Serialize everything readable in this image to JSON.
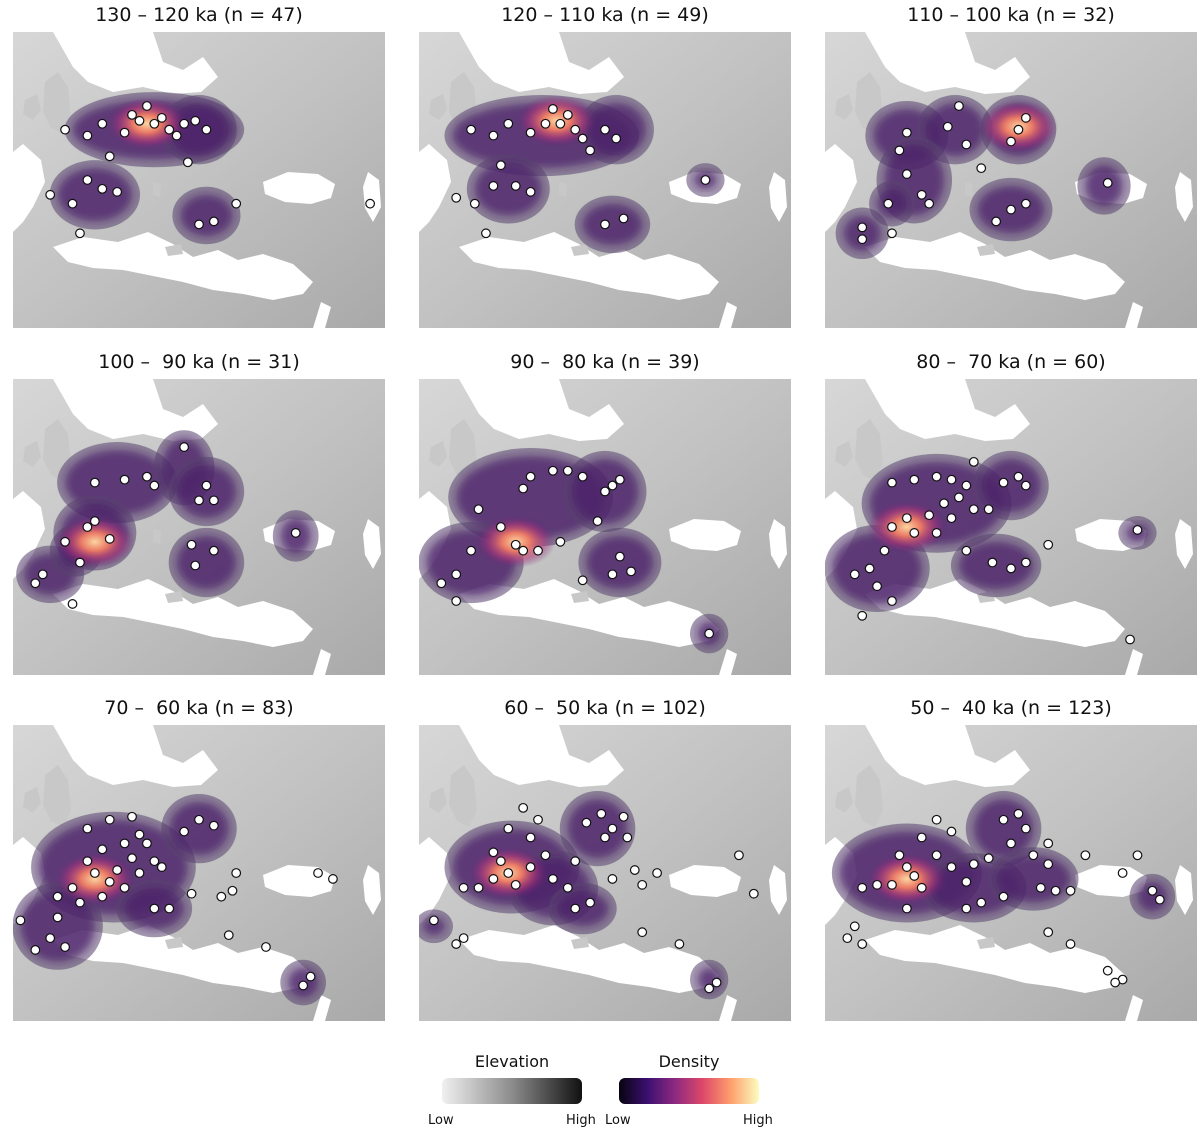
{
  "panels": [
    {
      "title": "130 – 120 ka (n = 47)",
      "blobs": [
        [
          0.38,
          0.33,
          0.22,
          0.1
        ],
        [
          0.22,
          0.55,
          0.1,
          0.09
        ],
        [
          0.52,
          0.62,
          0.07,
          0.07
        ],
        [
          0.5,
          0.33,
          0.08,
          0.09
        ]
      ],
      "hot": [
        0.36,
        0.31
      ],
      "sites": [
        [
          0.14,
          0.33
        ],
        [
          0.2,
          0.35
        ],
        [
          0.24,
          0.31
        ],
        [
          0.3,
          0.34
        ],
        [
          0.34,
          0.3
        ],
        [
          0.38,
          0.31
        ],
        [
          0.4,
          0.29
        ],
        [
          0.42,
          0.33
        ],
        [
          0.44,
          0.35
        ],
        [
          0.46,
          0.31
        ],
        [
          0.36,
          0.25
        ],
        [
          0.32,
          0.28
        ],
        [
          0.26,
          0.42
        ],
        [
          0.2,
          0.5
        ],
        [
          0.24,
          0.53
        ],
        [
          0.28,
          0.54
        ],
        [
          0.16,
          0.58
        ],
        [
          0.1,
          0.55
        ],
        [
          0.49,
          0.3
        ],
        [
          0.52,
          0.33
        ],
        [
          0.47,
          0.44
        ],
        [
          0.54,
          0.64
        ],
        [
          0.5,
          0.65
        ],
        [
          0.6,
          0.58
        ],
        [
          0.18,
          0.68
        ],
        [
          0.96,
          0.58
        ]
      ]
    },
    {
      "title": "120 – 110 ka (n = 49)",
      "blobs": [
        [
          0.33,
          0.35,
          0.24,
          0.11
        ],
        [
          0.24,
          0.53,
          0.09,
          0.09
        ],
        [
          0.52,
          0.65,
          0.08,
          0.07
        ],
        [
          0.53,
          0.33,
          0.08,
          0.09
        ],
        [
          0.77,
          0.5,
          0.03,
          0.03
        ]
      ],
      "hot": [
        0.37,
        0.3
      ],
      "sites": [
        [
          0.14,
          0.33
        ],
        [
          0.2,
          0.35
        ],
        [
          0.24,
          0.31
        ],
        [
          0.3,
          0.34
        ],
        [
          0.34,
          0.31
        ],
        [
          0.38,
          0.31
        ],
        [
          0.4,
          0.28
        ],
        [
          0.42,
          0.33
        ],
        [
          0.44,
          0.36
        ],
        [
          0.36,
          0.26
        ],
        [
          0.22,
          0.45
        ],
        [
          0.2,
          0.52
        ],
        [
          0.26,
          0.52
        ],
        [
          0.3,
          0.54
        ],
        [
          0.1,
          0.56
        ],
        [
          0.15,
          0.58
        ],
        [
          0.5,
          0.33
        ],
        [
          0.53,
          0.36
        ],
        [
          0.46,
          0.4
        ],
        [
          0.5,
          0.65
        ],
        [
          0.55,
          0.63
        ],
        [
          0.77,
          0.5
        ],
        [
          0.18,
          0.68
        ]
      ]
    },
    {
      "title": "110 – 100 ka (n = 32)",
      "blobs": [
        [
          0.22,
          0.35,
          0.09,
          0.09
        ],
        [
          0.35,
          0.33,
          0.08,
          0.09
        ],
        [
          0.52,
          0.33,
          0.08,
          0.09
        ],
        [
          0.24,
          0.5,
          0.08,
          0.12
        ],
        [
          0.5,
          0.6,
          0.09,
          0.08
        ],
        [
          0.75,
          0.52,
          0.05,
          0.07
        ],
        [
          0.1,
          0.68,
          0.05,
          0.06
        ],
        [
          0.18,
          0.58,
          0.04,
          0.05
        ]
      ],
      "hot": [
        0.52,
        0.32
      ],
      "sites": [
        [
          0.22,
          0.34
        ],
        [
          0.2,
          0.4
        ],
        [
          0.33,
          0.32
        ],
        [
          0.38,
          0.38
        ],
        [
          0.36,
          0.25
        ],
        [
          0.52,
          0.33
        ],
        [
          0.54,
          0.29
        ],
        [
          0.5,
          0.37
        ],
        [
          0.42,
          0.46
        ],
        [
          0.22,
          0.48
        ],
        [
          0.26,
          0.55
        ],
        [
          0.28,
          0.58
        ],
        [
          0.5,
          0.6
        ],
        [
          0.46,
          0.64
        ],
        [
          0.54,
          0.58
        ],
        [
          0.76,
          0.51
        ],
        [
          0.1,
          0.66
        ],
        [
          0.1,
          0.7
        ],
        [
          0.17,
          0.58
        ],
        [
          0.18,
          0.68
        ]
      ]
    },
    {
      "title": "100 –  90 ka (n = 31)",
      "blobs": [
        [
          0.28,
          0.35,
          0.14,
          0.11
        ],
        [
          0.46,
          0.3,
          0.06,
          0.1
        ],
        [
          0.52,
          0.38,
          0.08,
          0.09
        ],
        [
          0.22,
          0.52,
          0.09,
          0.1
        ],
        [
          0.52,
          0.62,
          0.08,
          0.09
        ],
        [
          0.1,
          0.66,
          0.07,
          0.07
        ],
        [
          0.17,
          0.58,
          0.05,
          0.06
        ],
        [
          0.76,
          0.53,
          0.04,
          0.06
        ]
      ],
      "hot": [
        0.22,
        0.55
      ],
      "sites": [
        [
          0.22,
          0.35
        ],
        [
          0.3,
          0.34
        ],
        [
          0.36,
          0.33
        ],
        [
          0.38,
          0.36
        ],
        [
          0.46,
          0.23
        ],
        [
          0.52,
          0.36
        ],
        [
          0.54,
          0.41
        ],
        [
          0.5,
          0.41
        ],
        [
          0.22,
          0.48
        ],
        [
          0.2,
          0.5
        ],
        [
          0.26,
          0.54
        ],
        [
          0.48,
          0.56
        ],
        [
          0.54,
          0.58
        ],
        [
          0.49,
          0.63
        ],
        [
          0.08,
          0.66
        ],
        [
          0.06,
          0.69
        ],
        [
          0.18,
          0.62
        ],
        [
          0.14,
          0.55
        ],
        [
          0.16,
          0.76
        ],
        [
          0.76,
          0.52
        ]
      ]
    },
    {
      "title": "90 –  80 ka (n = 39)",
      "blobs": [
        [
          0.3,
          0.4,
          0.2,
          0.14
        ],
        [
          0.5,
          0.38,
          0.09,
          0.11
        ],
        [
          0.14,
          0.62,
          0.12,
          0.11
        ],
        [
          0.54,
          0.62,
          0.09,
          0.09
        ],
        [
          0.78,
          0.86,
          0.03,
          0.04
        ]
      ],
      "hot": [
        0.26,
        0.55
      ],
      "sites": [
        [
          0.28,
          0.37
        ],
        [
          0.3,
          0.33
        ],
        [
          0.36,
          0.31
        ],
        [
          0.4,
          0.31
        ],
        [
          0.44,
          0.33
        ],
        [
          0.5,
          0.38
        ],
        [
          0.52,
          0.36
        ],
        [
          0.54,
          0.34
        ],
        [
          0.16,
          0.44
        ],
        [
          0.22,
          0.5
        ],
        [
          0.26,
          0.56
        ],
        [
          0.28,
          0.58
        ],
        [
          0.32,
          0.58
        ],
        [
          0.38,
          0.55
        ],
        [
          0.14,
          0.58
        ],
        [
          0.1,
          0.66
        ],
        [
          0.06,
          0.69
        ],
        [
          0.1,
          0.75
        ],
        [
          0.54,
          0.6
        ],
        [
          0.57,
          0.65
        ],
        [
          0.52,
          0.66
        ],
        [
          0.78,
          0.86
        ],
        [
          0.48,
          0.48
        ],
        [
          0.44,
          0.68
        ]
      ]
    },
    {
      "title": "80 –  70 ka (n = 60)",
      "blobs": [
        [
          0.3,
          0.42,
          0.18,
          0.14
        ],
        [
          0.5,
          0.36,
          0.08,
          0.09
        ],
        [
          0.14,
          0.64,
          0.12,
          0.12
        ],
        [
          0.46,
          0.63,
          0.1,
          0.08
        ],
        [
          0.84,
          0.52,
          0.03,
          0.03
        ]
      ],
      "hot": [
        0.22,
        0.5
      ],
      "sites": [
        [
          0.18,
          0.35
        ],
        [
          0.24,
          0.34
        ],
        [
          0.3,
          0.33
        ],
        [
          0.34,
          0.34
        ],
        [
          0.38,
          0.36
        ],
        [
          0.32,
          0.42
        ],
        [
          0.28,
          0.46
        ],
        [
          0.22,
          0.47
        ],
        [
          0.18,
          0.5
        ],
        [
          0.24,
          0.52
        ],
        [
          0.3,
          0.52
        ],
        [
          0.34,
          0.47
        ],
        [
          0.36,
          0.4
        ],
        [
          0.4,
          0.44
        ],
        [
          0.44,
          0.44
        ],
        [
          0.48,
          0.35
        ],
        [
          0.52,
          0.33
        ],
        [
          0.54,
          0.36
        ],
        [
          0.4,
          0.28
        ],
        [
          0.16,
          0.58
        ],
        [
          0.12,
          0.64
        ],
        [
          0.08,
          0.66
        ],
        [
          0.14,
          0.7
        ],
        [
          0.18,
          0.75
        ],
        [
          0.1,
          0.8
        ],
        [
          0.45,
          0.62
        ],
        [
          0.5,
          0.64
        ],
        [
          0.54,
          0.62
        ],
        [
          0.6,
          0.56
        ],
        [
          0.84,
          0.51
        ],
        [
          0.82,
          0.88
        ],
        [
          0.38,
          0.58
        ]
      ]
    },
    {
      "title": "70 –  60 ka (n = 83)",
      "blobs": [
        [
          0.27,
          0.48,
          0.2,
          0.16
        ],
        [
          0.5,
          0.35,
          0.08,
          0.09
        ],
        [
          0.12,
          0.68,
          0.1,
          0.12
        ],
        [
          0.38,
          0.62,
          0.08,
          0.07
        ],
        [
          0.78,
          0.87,
          0.04,
          0.05
        ]
      ],
      "hot": [
        0.22,
        0.52
      ],
      "sites": [
        [
          0.2,
          0.35
        ],
        [
          0.26,
          0.32
        ],
        [
          0.32,
          0.31
        ],
        [
          0.34,
          0.37
        ],
        [
          0.3,
          0.4
        ],
        [
          0.24,
          0.42
        ],
        [
          0.2,
          0.46
        ],
        [
          0.22,
          0.5
        ],
        [
          0.26,
          0.53
        ],
        [
          0.3,
          0.55
        ],
        [
          0.34,
          0.5
        ],
        [
          0.38,
          0.46
        ],
        [
          0.36,
          0.4
        ],
        [
          0.32,
          0.45
        ],
        [
          0.28,
          0.49
        ],
        [
          0.16,
          0.55
        ],
        [
          0.12,
          0.58
        ],
        [
          0.18,
          0.6
        ],
        [
          0.12,
          0.65
        ],
        [
          0.1,
          0.72
        ],
        [
          0.06,
          0.76
        ],
        [
          0.14,
          0.75
        ],
        [
          0.24,
          0.58
        ],
        [
          0.4,
          0.48
        ],
        [
          0.46,
          0.36
        ],
        [
          0.5,
          0.32
        ],
        [
          0.54,
          0.34
        ],
        [
          0.38,
          0.62
        ],
        [
          0.42,
          0.62
        ],
        [
          0.48,
          0.57
        ],
        [
          0.56,
          0.58
        ],
        [
          0.6,
          0.5
        ],
        [
          0.59,
          0.56
        ],
        [
          0.58,
          0.71
        ],
        [
          0.68,
          0.75
        ],
        [
          0.8,
          0.85
        ],
        [
          0.78,
          0.88
        ],
        [
          0.82,
          0.5
        ],
        [
          0.86,
          0.52
        ],
        [
          0.02,
          0.66
        ]
      ]
    },
    {
      "title": "60 –  50 ka (n = 102)",
      "blobs": [
        [
          0.25,
          0.48,
          0.16,
          0.13
        ],
        [
          0.48,
          0.35,
          0.08,
          0.1
        ],
        [
          0.36,
          0.55,
          0.1,
          0.1
        ],
        [
          0.44,
          0.62,
          0.07,
          0.06
        ],
        [
          0.78,
          0.86,
          0.03,
          0.04
        ],
        [
          0.04,
          0.68,
          0.03,
          0.03
        ]
      ],
      "hot": [
        0.24,
        0.5
      ],
      "sites": [
        [
          0.28,
          0.28
        ],
        [
          0.32,
          0.32
        ],
        [
          0.24,
          0.35
        ],
        [
          0.3,
          0.38
        ],
        [
          0.2,
          0.43
        ],
        [
          0.22,
          0.46
        ],
        [
          0.24,
          0.5
        ],
        [
          0.26,
          0.54
        ],
        [
          0.2,
          0.52
        ],
        [
          0.16,
          0.55
        ],
        [
          0.12,
          0.55
        ],
        [
          0.3,
          0.48
        ],
        [
          0.34,
          0.44
        ],
        [
          0.36,
          0.52
        ],
        [
          0.4,
          0.55
        ],
        [
          0.42,
          0.46
        ],
        [
          0.45,
          0.33
        ],
        [
          0.49,
          0.3
        ],
        [
          0.52,
          0.35
        ],
        [
          0.55,
          0.31
        ],
        [
          0.5,
          0.38
        ],
        [
          0.56,
          0.38
        ],
        [
          0.42,
          0.62
        ],
        [
          0.46,
          0.6
        ],
        [
          0.52,
          0.52
        ],
        [
          0.58,
          0.49
        ],
        [
          0.6,
          0.54
        ],
        [
          0.64,
          0.5
        ],
        [
          0.6,
          0.7
        ],
        [
          0.7,
          0.74
        ],
        [
          0.8,
          0.87
        ],
        [
          0.78,
          0.89
        ],
        [
          0.04,
          0.66
        ],
        [
          0.1,
          0.74
        ],
        [
          0.12,
          0.72
        ],
        [
          0.86,
          0.44
        ],
        [
          0.9,
          0.57
        ]
      ]
    },
    {
      "title": "50 –  40 ka (n = 123)",
      "blobs": [
        [
          0.22,
          0.5,
          0.18,
          0.14
        ],
        [
          0.48,
          0.35,
          0.08,
          0.1
        ],
        [
          0.4,
          0.55,
          0.12,
          0.09
        ],
        [
          0.56,
          0.52,
          0.1,
          0.08
        ],
        [
          0.88,
          0.58,
          0.04,
          0.05
        ]
      ],
      "hot": [
        0.22,
        0.52
      ],
      "sites": [
        [
          0.3,
          0.32
        ],
        [
          0.34,
          0.36
        ],
        [
          0.26,
          0.38
        ],
        [
          0.2,
          0.44
        ],
        [
          0.22,
          0.48
        ],
        [
          0.24,
          0.51
        ],
        [
          0.26,
          0.55
        ],
        [
          0.18,
          0.54
        ],
        [
          0.14,
          0.54
        ],
        [
          0.1,
          0.55
        ],
        [
          0.3,
          0.44
        ],
        [
          0.34,
          0.48
        ],
        [
          0.38,
          0.53
        ],
        [
          0.4,
          0.47
        ],
        [
          0.44,
          0.45
        ],
        [
          0.48,
          0.32
        ],
        [
          0.52,
          0.3
        ],
        [
          0.54,
          0.35
        ],
        [
          0.5,
          0.4
        ],
        [
          0.56,
          0.44
        ],
        [
          0.6,
          0.47
        ],
        [
          0.58,
          0.55
        ],
        [
          0.48,
          0.58
        ],
        [
          0.42,
          0.6
        ],
        [
          0.38,
          0.62
        ],
        [
          0.62,
          0.56
        ],
        [
          0.66,
          0.56
        ],
        [
          0.7,
          0.44
        ],
        [
          0.6,
          0.4
        ],
        [
          0.8,
          0.5
        ],
        [
          0.84,
          0.44
        ],
        [
          0.88,
          0.56
        ],
        [
          0.9,
          0.59
        ],
        [
          0.08,
          0.68
        ],
        [
          0.06,
          0.72
        ],
        [
          0.1,
          0.74
        ],
        [
          0.22,
          0.62
        ],
        [
          0.6,
          0.7
        ],
        [
          0.66,
          0.74
        ],
        [
          0.76,
          0.83
        ],
        [
          0.8,
          0.86
        ],
        [
          0.78,
          0.87
        ]
      ]
    }
  ],
  "legend": {
    "elevation": {
      "title": "Elevation",
      "low": "Low",
      "high": "High"
    },
    "density": {
      "title": "Density",
      "low": "Low",
      "high": "High"
    }
  }
}
